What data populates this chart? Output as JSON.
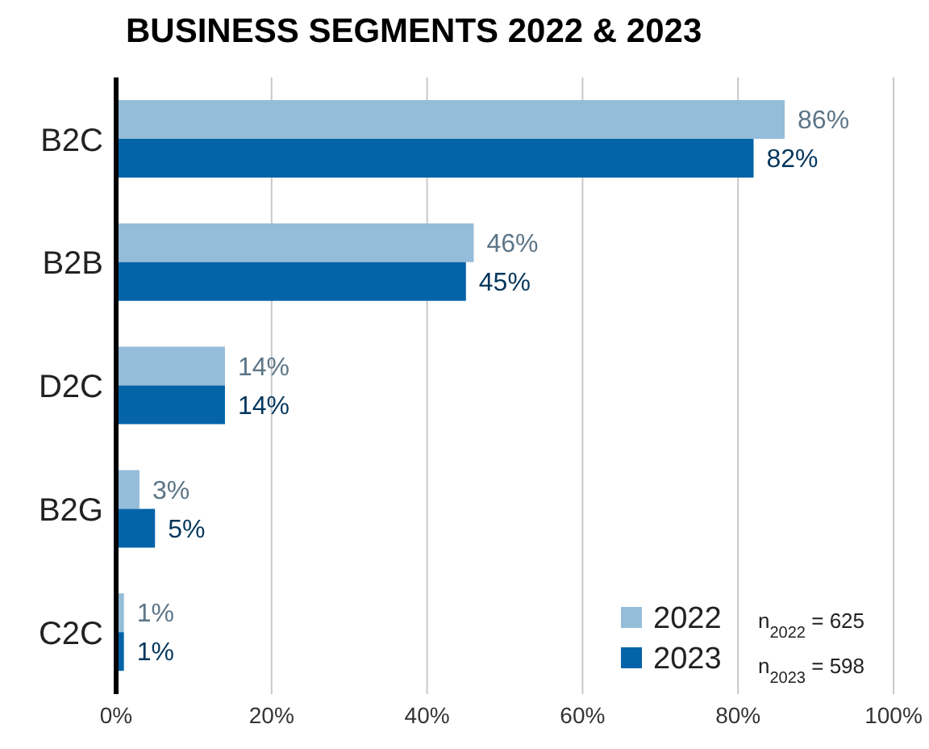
{
  "chart_data": {
    "type": "bar",
    "orientation": "horizontal",
    "title": "BUSINESS SEGMENTS 2022 & 2023",
    "categories": [
      "B2C",
      "B2B",
      "D2C",
      "B2G",
      "C2C"
    ],
    "series": [
      {
        "name": "2022",
        "color": "#95bcd9",
        "values": [
          86,
          46,
          14,
          3,
          1
        ],
        "value_labels": [
          "86%",
          "46%",
          "14%",
          "3%",
          "1%"
        ]
      },
      {
        "name": "2023",
        "color": "#0563a8",
        "values": [
          82,
          45,
          14,
          5,
          1
        ],
        "value_labels": [
          "82%",
          "45%",
          "14%",
          "5%",
          "1%"
        ]
      }
    ],
    "xlim": [
      0,
      100
    ],
    "xticks": [
      {
        "value": 0,
        "label": "0%"
      },
      {
        "value": 20,
        "label": "20%"
      },
      {
        "value": 40,
        "label": "40%"
      },
      {
        "value": 60,
        "label": "60%"
      },
      {
        "value": 80,
        "label": "80%"
      },
      {
        "value": 100,
        "label": "100%"
      }
    ],
    "grid": "x",
    "legend": "bottom right",
    "annotations": [
      "n$_{2022}$ = 625",
      "n$_{2023}$ = 598"
    ]
  }
}
